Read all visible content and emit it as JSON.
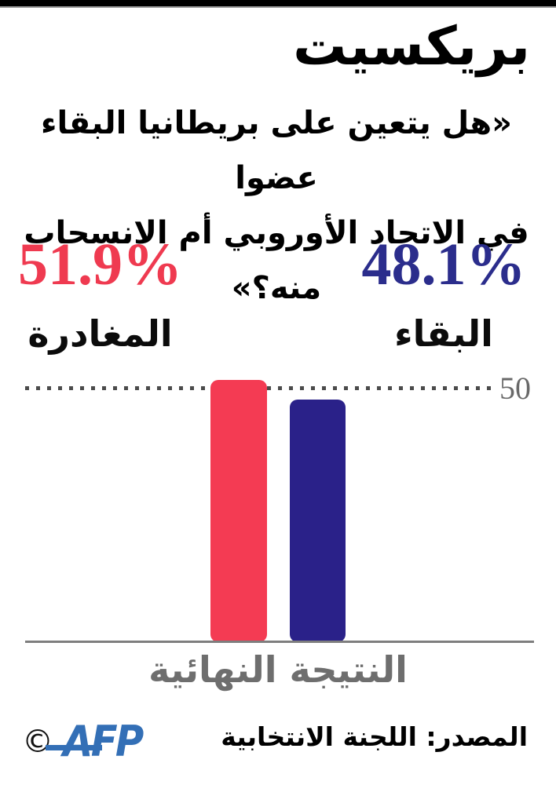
{
  "header": {
    "title": "بريكسيت",
    "question_line1": "«هل يتعين على بريطانيا البقاء عضوا",
    "question_line2": "في الاتحاد الأوروبي أم الانسحاب منه؟»"
  },
  "results": {
    "leave": {
      "value": "51.9%",
      "label": "المغادرة",
      "color": "#EF3A50"
    },
    "remain": {
      "value": "48.1%",
      "label": "البقاء",
      "color": "#2B2D8C"
    }
  },
  "chart_data": {
    "type": "bar",
    "categories": [
      "المغادرة",
      "البقاء"
    ],
    "values": [
      51.9,
      48.1
    ],
    "colors": [
      "#F43B53",
      "#2A2189"
    ],
    "reference_line": {
      "value": 50,
      "label": "50"
    },
    "xlabel": "النتيجة النهائية",
    "ylabel": "",
    "ylim": [
      0,
      54
    ],
    "grid": "single dotted reference line at 50",
    "legend": "none"
  },
  "footer": {
    "copyright_symbol": "©",
    "logo_text": "AFP",
    "logo_color": "#336FB6",
    "source": "المصدر: اللجنة الانتخابية"
  }
}
